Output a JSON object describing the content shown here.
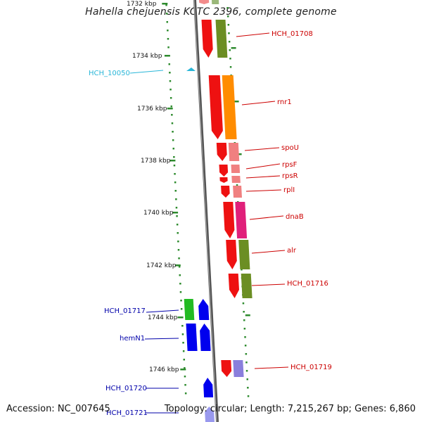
{
  "title": "Hahella chejuensis KCTC 2396, complete genome",
  "footer": {
    "accession": "Accession: NC_007645",
    "summary": "Topology: circular; Length: 7,215,267 bp; Genes: 6,860"
  },
  "scale": {
    "unit": "kbp",
    "tick_labels": [
      "1732 kbp",
      "1734 kbp",
      "1736 kbp",
      "1738 kbp",
      "1740 kbp",
      "1742 kbp",
      "1744 kbp",
      "1746 kbp"
    ]
  },
  "genes": [
    {
      "id": "g0",
      "label": "HCH_01708",
      "color": "#cc0000"
    },
    {
      "id": "g1",
      "label": "HCH_10050",
      "color": "#29b6d8"
    },
    {
      "id": "g2",
      "label": "rnr1",
      "color": "#cc0000"
    },
    {
      "id": "g3",
      "label": "spoU",
      "color": "#cc0000"
    },
    {
      "id": "g4",
      "label": "rpsF",
      "color": "#cc0000"
    },
    {
      "id": "g5",
      "label": "rpsR",
      "color": "#cc0000"
    },
    {
      "id": "g6",
      "label": "rplI",
      "color": "#cc0000"
    },
    {
      "id": "g7",
      "label": "dnaB",
      "color": "#cc0000"
    },
    {
      "id": "g8",
      "label": "alr",
      "color": "#cc0000"
    },
    {
      "id": "g9",
      "label": "HCH_01716",
      "color": "#cc0000"
    },
    {
      "id": "g10",
      "label": "HCH_01717",
      "color": "#0000aa"
    },
    {
      "id": "g11",
      "label": "hemN1",
      "color": "#0000aa"
    },
    {
      "id": "g12",
      "label": "HCH_01719",
      "color": "#cc0000"
    },
    {
      "id": "g13",
      "label": "HCH_01720",
      "color": "#0000aa"
    },
    {
      "id": "g14",
      "label": "HCH_01721",
      "color": "#0000aa"
    }
  ]
}
